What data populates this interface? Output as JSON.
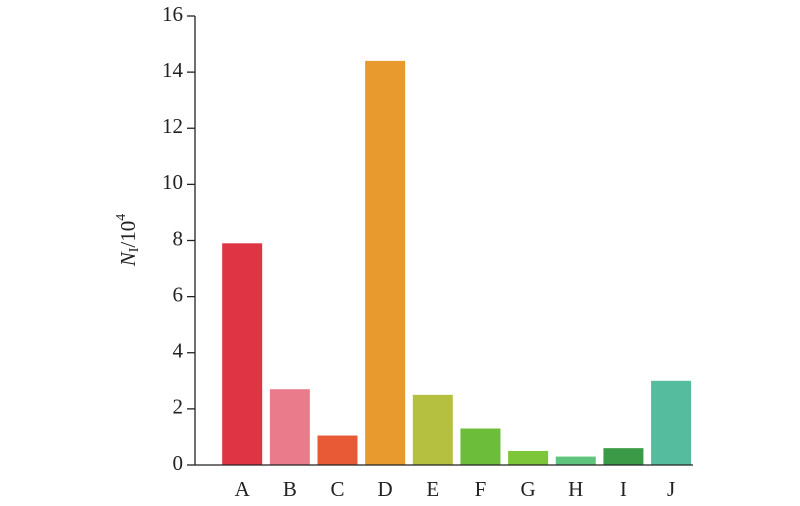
{
  "chart_data": {
    "type": "bar",
    "ylabel": {
      "symbol": "N",
      "subscript": "I",
      "base": "/10",
      "exponent": "4"
    },
    "categories": [
      "A",
      "B",
      "C",
      "D",
      "E",
      "F",
      "G",
      "H",
      "I",
      "J"
    ],
    "values": [
      7.9,
      2.7,
      1.05,
      14.4,
      2.5,
      1.3,
      0.5,
      0.3,
      0.6,
      3.0
    ],
    "colors": [
      "#de3444",
      "#e97b8a",
      "#e85a35",
      "#e89a2f",
      "#b5c040",
      "#6bbd3a",
      "#7dc63a",
      "#5fc47e",
      "#3a9a45",
      "#55bd9e"
    ],
    "ylim": [
      0,
      16
    ],
    "yticks": [
      0,
      2,
      4,
      6,
      8,
      10,
      12,
      14,
      16
    ]
  }
}
